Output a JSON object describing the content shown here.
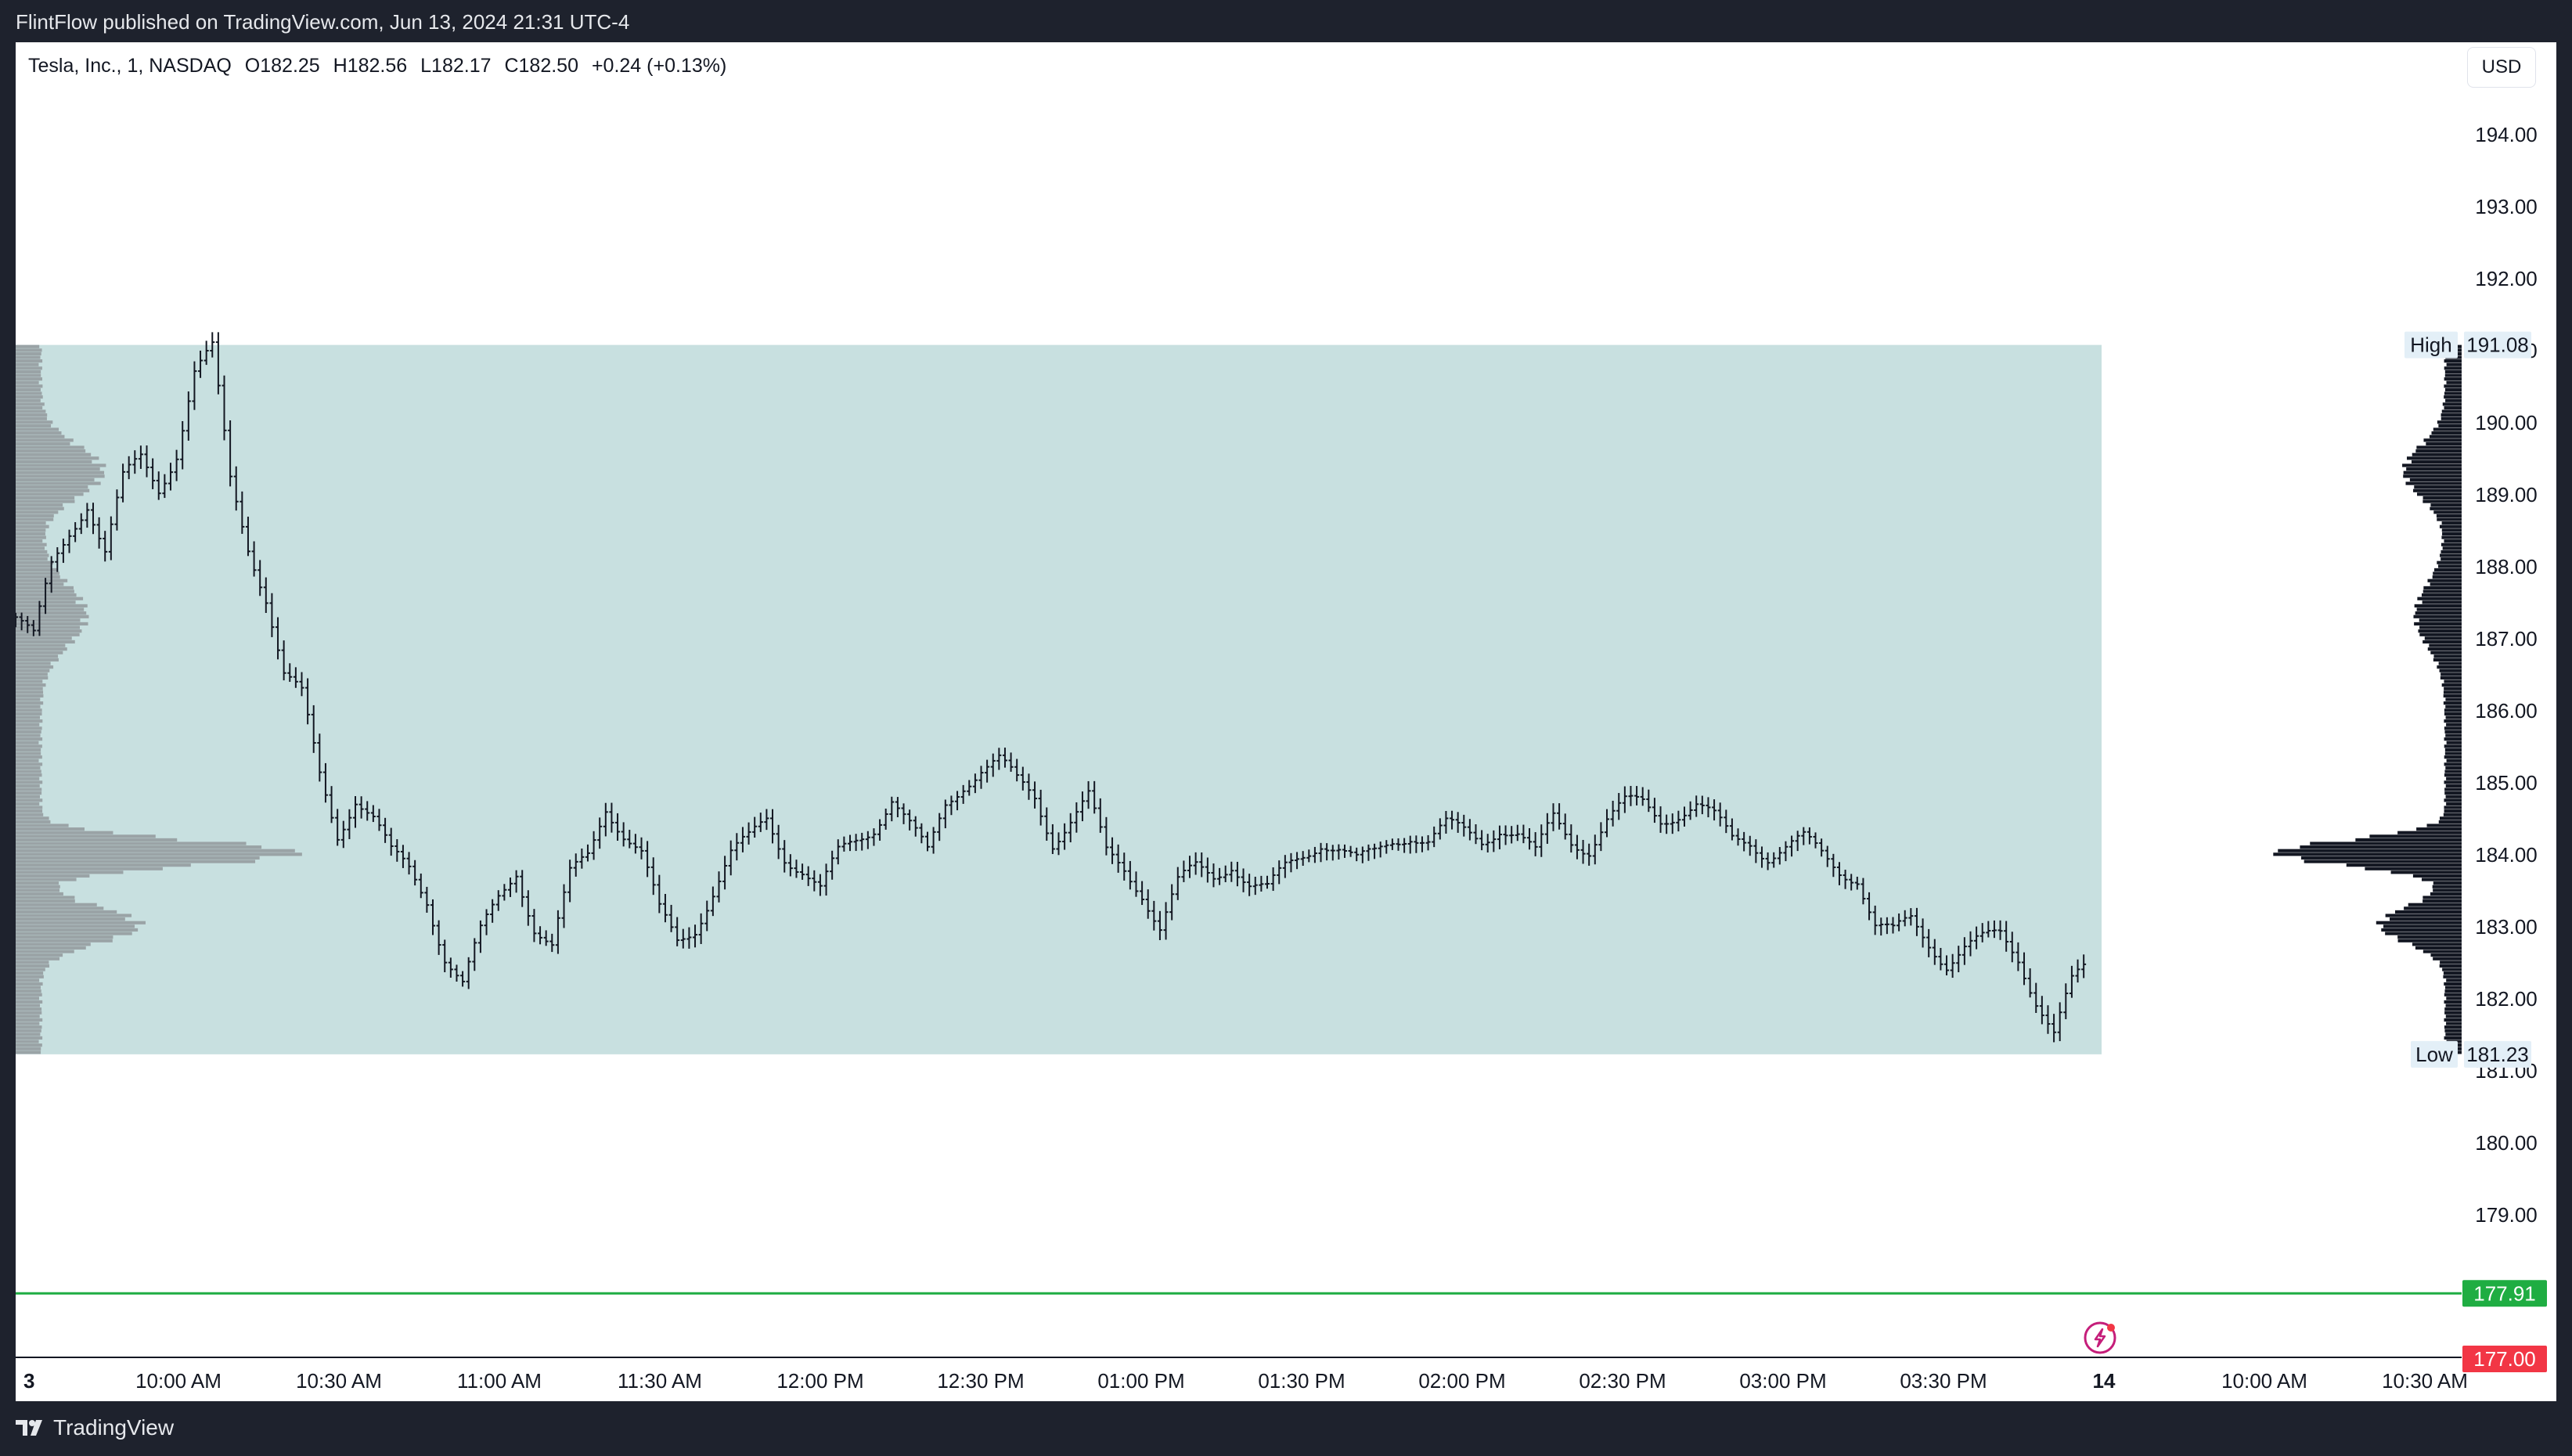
{
  "header": {
    "publish_line": "FlintFlow published on TradingView.com, Jun 13, 2024 21:31 UTC-4"
  },
  "legend": {
    "symbol": "Tesla, Inc., 1, NASDAQ",
    "open": "O182.25",
    "high": "H182.56",
    "low": "L182.17",
    "close": "C182.50",
    "change": "+0.24 (+0.13%)"
  },
  "currency_button": "USD",
  "footer": {
    "brand": "TradingView"
  },
  "colors": {
    "background": "#ffffff",
    "range_box": "#c8e0e0",
    "candle": "#131722",
    "left_profile": "#9aa3a6",
    "right_profile": "#131722",
    "green_line": "#1fad42",
    "red_label": "#f23645",
    "chrome": "#1e222d",
    "icon_magenta": "#c51e7a"
  },
  "icons": {
    "replay": "lightning-icon",
    "logo": "tradingview-logo-icon"
  },
  "chart_data": {
    "type": "candlestick",
    "symbol": "TSLA",
    "interval": "1",
    "price_axis": {
      "ticks": [
        "194.00",
        "193.00",
        "192.00",
        "191.00",
        "190.00",
        "189.00",
        "188.00",
        "187.00",
        "186.00",
        "185.00",
        "184.00",
        "183.00",
        "182.00",
        "181.00",
        "180.00",
        "179.00"
      ],
      "ylim": [
        177.0,
        194.8
      ]
    },
    "time_axis": {
      "ticks": [
        "3",
        "10:00 AM",
        "10:30 AM",
        "11:00 AM",
        "11:30 AM",
        "12:00 PM",
        "12:30 PM",
        "01:00 PM",
        "01:30 PM",
        "02:00 PM",
        "02:30 PM",
        "03:00 PM",
        "03:30 PM",
        "14",
        "10:00 AM",
        "10:30 AM"
      ]
    },
    "range_box": {
      "high_label": "High",
      "high": 191.08,
      "low_label": "Low",
      "low": 181.23,
      "start": "09:30",
      "end": "16:00"
    },
    "horizontal_lines": [
      {
        "price": 177.91,
        "label": "177.91",
        "color": "#1fad42"
      }
    ],
    "price_labels": [
      {
        "price": 177.0,
        "label": "177.00",
        "color": "#f23645"
      }
    ],
    "close_series": [
      [
        0,
        187.3
      ],
      [
        3,
        187.0
      ],
      [
        6,
        188.0
      ],
      [
        9,
        188.5
      ],
      [
        12,
        188.9
      ],
      [
        15,
        188.2
      ],
      [
        18,
        189.2
      ],
      [
        21,
        189.5
      ],
      [
        24,
        189.1
      ],
      [
        27,
        189.6
      ],
      [
        30,
        190.7
      ],
      [
        33,
        191.0
      ],
      [
        36,
        189.2
      ],
      [
        39,
        188.3
      ],
      [
        42,
        187.6
      ],
      [
        45,
        186.5
      ],
      [
        48,
        186.2
      ],
      [
        51,
        185.1
      ],
      [
        54,
        184.3
      ],
      [
        57,
        184.8
      ],
      [
        60,
        184.5
      ],
      [
        63,
        184.0
      ],
      [
        66,
        183.8
      ],
      [
        69,
        183.4
      ],
      [
        72,
        182.6
      ],
      [
        75,
        182.2
      ],
      [
        78,
        182.9
      ],
      [
        81,
        183.4
      ],
      [
        84,
        183.8
      ],
      [
        87,
        183.0
      ],
      [
        90,
        182.7
      ],
      [
        93,
        183.7
      ],
      [
        96,
        184.0
      ],
      [
        99,
        184.7
      ],
      [
        102,
        184.3
      ],
      [
        105,
        184.0
      ],
      [
        108,
        183.2
      ],
      [
        111,
        182.8
      ],
      [
        114,
        183.0
      ],
      [
        117,
        183.5
      ],
      [
        120,
        184.0
      ],
      [
        123,
        184.2
      ],
      [
        126,
        184.5
      ],
      [
        129,
        184.0
      ],
      [
        132,
        183.8
      ],
      [
        135,
        183.5
      ],
      [
        138,
        184.0
      ],
      [
        141,
        184.2
      ],
      [
        144,
        184.4
      ],
      [
        147,
        184.8
      ],
      [
        150,
        184.4
      ],
      [
        153,
        184.0
      ],
      [
        156,
        184.7
      ],
      [
        159,
        185.0
      ],
      [
        162,
        185.2
      ],
      [
        165,
        185.3
      ],
      [
        168,
        185.0
      ],
      [
        171,
        184.8
      ],
      [
        174,
        184.2
      ],
      [
        177,
        184.5
      ],
      [
        180,
        184.8
      ],
      [
        183,
        184.0
      ],
      [
        186,
        183.8
      ],
      [
        189,
        183.5
      ],
      [
        192,
        183.0
      ],
      [
        195,
        183.6
      ],
      [
        198,
        183.8
      ],
      [
        201,
        183.7
      ],
      [
        204,
        183.9
      ],
      [
        207,
        183.6
      ],
      [
        210,
        183.5
      ],
      [
        213,
        183.8
      ],
      [
        216,
        184.0
      ],
      [
        219,
        184.2
      ],
      [
        222,
        184.1
      ],
      [
        225,
        183.9
      ],
      [
        228,
        184.0
      ],
      [
        231,
        184.2
      ],
      [
        234,
        184.3
      ],
      [
        237,
        184.2
      ],
      [
        240,
        184.4
      ],
      [
        243,
        184.3
      ],
      [
        246,
        184.2
      ],
      [
        249,
        184.4
      ],
      [
        252,
        184.3
      ],
      [
        255,
        184.0
      ],
      [
        258,
        184.5
      ],
      [
        261,
        184.2
      ],
      [
        264,
        184.1
      ],
      [
        267,
        184.5
      ],
      [
        270,
        184.7
      ],
      [
        273,
        184.7
      ],
      [
        276,
        184.5
      ],
      [
        279,
        184.6
      ],
      [
        282,
        184.7
      ],
      [
        285,
        184.5
      ],
      [
        288,
        184.2
      ],
      [
        291,
        184.2
      ],
      [
        294,
        184.0
      ],
      [
        297,
        184.1
      ],
      [
        300,
        184.2
      ],
      [
        303,
        184.0
      ],
      [
        306,
        183.8
      ],
      [
        309,
        183.7
      ],
      [
        312,
        183.0
      ],
      [
        315,
        182.9
      ],
      [
        318,
        183.1
      ],
      [
        321,
        182.8
      ],
      [
        324,
        182.5
      ],
      [
        327,
        182.7
      ],
      [
        330,
        182.8
      ],
      [
        333,
        182.9
      ],
      [
        336,
        182.6
      ],
      [
        339,
        182.0
      ],
      [
        342,
        181.5
      ],
      [
        345,
        182.2
      ],
      [
        348,
        182.5
      ]
    ],
    "volume_profile_left_note": "session volume profile, POC near 184.0",
    "volume_profile_right_note": "visible range volume profile, POC near 184.0"
  }
}
